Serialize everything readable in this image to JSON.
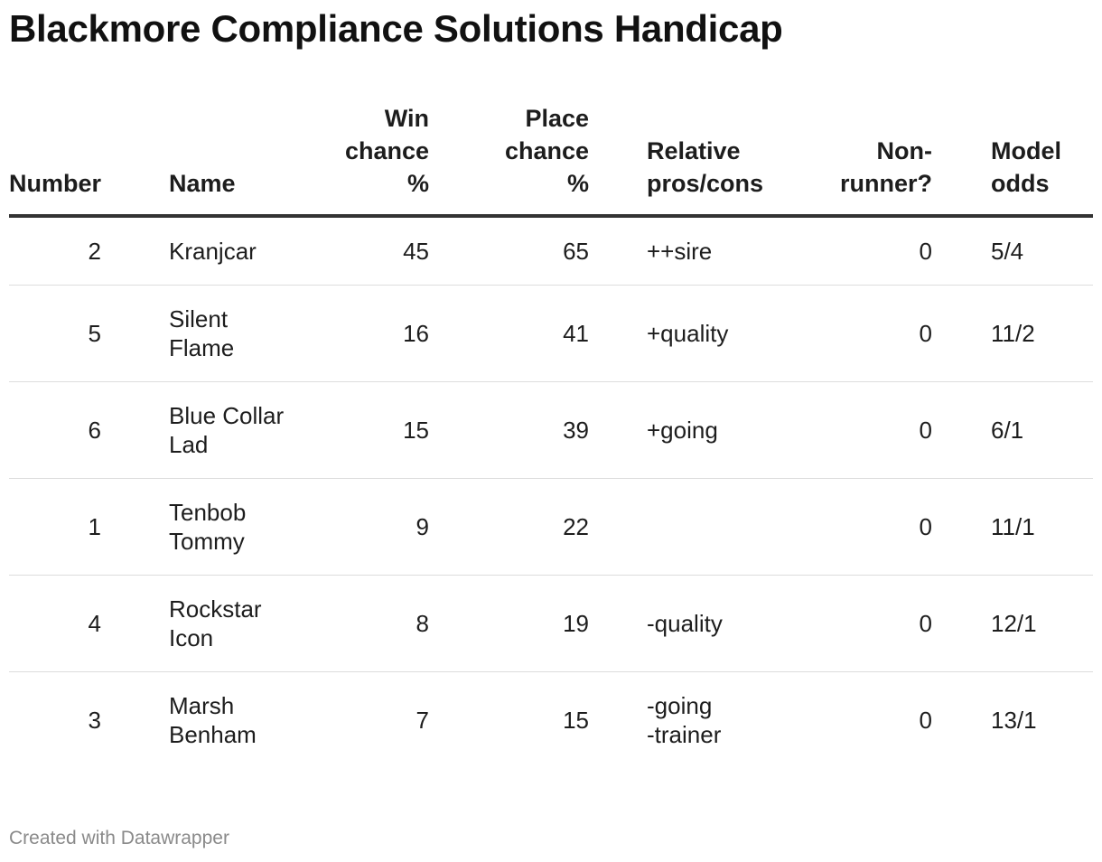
{
  "title": "Blackmore Compliance Solutions Handicap",
  "columns": {
    "number": "Number",
    "name": "Name",
    "win": "Win chance %",
    "place": "Place chance %",
    "pros": "Relative pros/cons",
    "nonrunner": "Non-runner?",
    "odds": "Model odds"
  },
  "rows": [
    {
      "number": "2",
      "name": "Kranjcar",
      "win": "45",
      "place": "65",
      "pros": "++sire",
      "nonrunner": "0",
      "odds": "5/4"
    },
    {
      "number": "5",
      "name": "Silent Flame",
      "win": "16",
      "place": "41",
      "pros": "+quality",
      "nonrunner": "0",
      "odds": "11/2"
    },
    {
      "number": "6",
      "name": "Blue Collar Lad",
      "win": "15",
      "place": "39",
      "pros": "+going",
      "nonrunner": "0",
      "odds": "6/1"
    },
    {
      "number": "1",
      "name": "Tenbob Tommy",
      "win": "9",
      "place": "22",
      "pros": "",
      "nonrunner": "0",
      "odds": "11/1"
    },
    {
      "number": "4",
      "name": "Rockstar Icon",
      "win": "8",
      "place": "19",
      "pros": "-quality",
      "nonrunner": "0",
      "odds": "12/1"
    },
    {
      "number": "3",
      "name": "Marsh Benham",
      "win": "7",
      "place": "15",
      "pros": "-going\n-trainer",
      "nonrunner": "0",
      "odds": "13/1"
    }
  ],
  "footer": "Created with Datawrapper",
  "chart_data": {
    "type": "table",
    "title": "Blackmore Compliance Solutions Handicap",
    "columns": [
      "Number",
      "Name",
      "Win chance %",
      "Place chance %",
      "Relative pros/cons",
      "Non-runner?",
      "Model odds"
    ],
    "rows": [
      [
        2,
        "Kranjcar",
        45,
        65,
        "++sire",
        0,
        "5/4"
      ],
      [
        5,
        "Silent Flame",
        16,
        41,
        "+quality",
        0,
        "11/2"
      ],
      [
        6,
        "Blue Collar Lad",
        15,
        39,
        "+going",
        0,
        "6/1"
      ],
      [
        1,
        "Tenbob Tommy",
        9,
        22,
        "",
        0,
        "11/1"
      ],
      [
        4,
        "Rockstar Icon",
        8,
        19,
        "-quality",
        0,
        "12/1"
      ],
      [
        3,
        "Marsh Benham",
        7,
        15,
        "-going -trainer",
        0,
        "13/1"
      ]
    ]
  }
}
